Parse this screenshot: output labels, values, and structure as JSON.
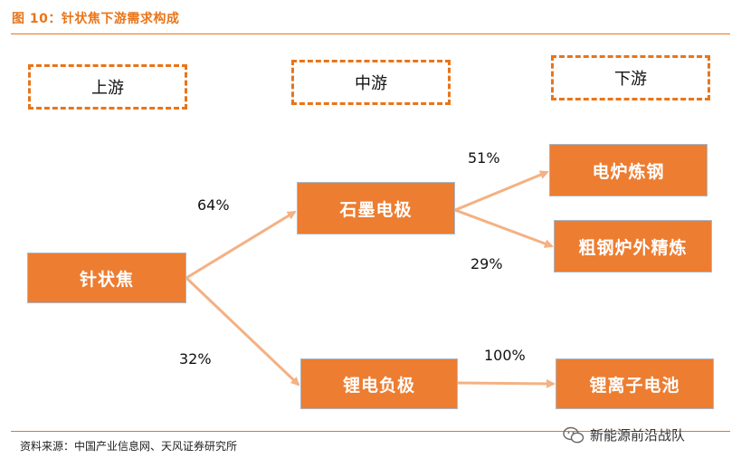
{
  "title": "图 10：针状焦下游需求构成",
  "stages": {
    "upstream": "上游",
    "midstream": "中游",
    "downstream": "下游"
  },
  "nodes": {
    "needle_coke": "针状焦",
    "graphite_electrode": "石墨电极",
    "lithium_anode": "锂电负极",
    "eaf_steel": "电炉炼钢",
    "ladle_refining": "粗钢炉外精炼",
    "lithium_battery": "锂离子电池"
  },
  "flows": {
    "needle_to_graphite": "64%",
    "needle_to_anode": "32%",
    "graphite_to_eaf": "51%",
    "graphite_to_refining": "29%",
    "anode_to_battery": "100%"
  },
  "colors": {
    "accent": "#e8751a",
    "node_fill": "#ed7d31",
    "arrow": "#f4b183"
  },
  "source": "资料来源：中国产业信息网、天风证券研究所",
  "watermark": "新能源前沿战队"
}
